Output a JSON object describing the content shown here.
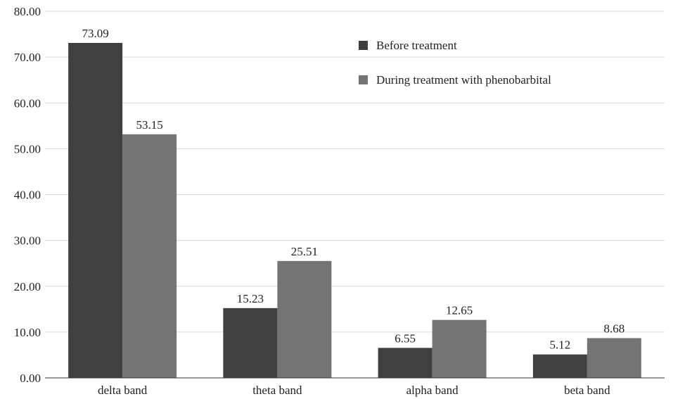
{
  "chart_data": {
    "type": "bar",
    "categories": [
      "delta band",
      "theta band",
      "alpha band",
      "beta band"
    ],
    "series": [
      {
        "name": "Before treatment",
        "values": [
          73.09,
          15.23,
          6.55,
          5.12
        ],
        "color": "#404040"
      },
      {
        "name": "During treatment with phenobarbital",
        "values": [
          53.15,
          25.51,
          12.65,
          8.68
        ],
        "color": "#747474"
      }
    ],
    "data_labels": [
      [
        "73.09",
        "15.23",
        "6.55",
        "5.12"
      ],
      [
        "53.15",
        "25.51",
        "12.65",
        "8.68"
      ]
    ],
    "yticks": [
      "0.00",
      "10.00",
      "20.00",
      "30.00",
      "40.00",
      "50.00",
      "60.00",
      "70.00",
      "80.00"
    ],
    "ylim": [
      0,
      80
    ],
    "grid": true,
    "legend_position": "top-right"
  }
}
